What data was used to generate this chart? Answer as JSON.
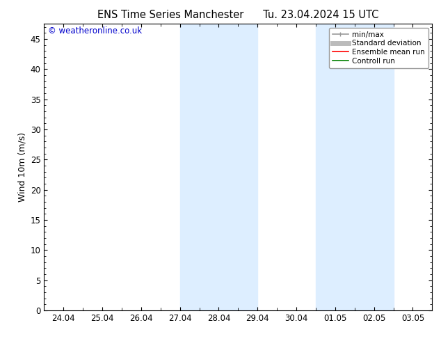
{
  "title": "ENS Time Series Manchester      Tu. 23.04.2024 15 UTC",
  "ylabel": "Wind 10m (m/s)",
  "watermark": "© weatheronline.co.uk",
  "ylim": [
    0,
    47.5
  ],
  "yticks": [
    0,
    5,
    10,
    15,
    20,
    25,
    30,
    35,
    40,
    45
  ],
  "xlim": [
    -0.5,
    9.5
  ],
  "xtick_labels": [
    "24.04",
    "25.04",
    "26.04",
    "27.04",
    "28.04",
    "29.04",
    "30.04",
    "01.05",
    "02.05",
    "03.05"
  ],
  "xtick_positions": [
    0,
    1,
    2,
    3,
    4,
    5,
    6,
    7,
    8,
    9
  ],
  "shaded_bands": [
    {
      "x_start": 3.0,
      "x_end": 3.5
    },
    {
      "x_start": 3.5,
      "x_end": 5.0
    },
    {
      "x_start": 6.5,
      "x_end": 7.0
    },
    {
      "x_start": 7.0,
      "x_end": 8.5
    }
  ],
  "shaded_color": "#ddeeff",
  "background_color": "#ffffff",
  "plot_bg_color": "#ffffff",
  "legend_items": [
    {
      "label": "min/max",
      "color": "#999999",
      "lw": 1.2
    },
    {
      "label": "Standard deviation",
      "color": "#bbbbbb",
      "lw": 5
    },
    {
      "label": "Ensemble mean run",
      "color": "#ff0000",
      "lw": 1.2
    },
    {
      "label": "Controll run",
      "color": "#008000",
      "lw": 1.2
    }
  ],
  "tick_fontsize": 8.5,
  "label_fontsize": 9,
  "title_fontsize": 10.5,
  "watermark_color": "#0000cc",
  "watermark_fontsize": 8.5
}
